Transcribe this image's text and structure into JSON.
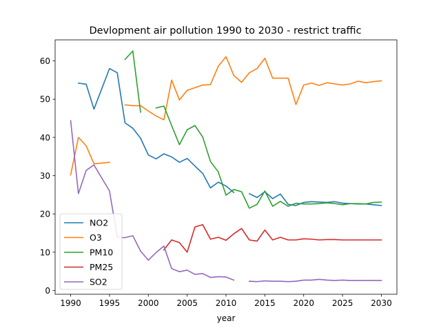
{
  "chart_data": {
    "type": "line",
    "title": "Devlopment air pollution 1990 to 2030 - restrict traffic",
    "xlabel": "year",
    "ylabel": "",
    "xlim": [
      1988.0,
      2032.0
    ],
    "ylim": [
      -1.0,
      65.5
    ],
    "xticks": [
      1990,
      1995,
      2000,
      2005,
      2010,
      2015,
      2020,
      2025,
      2030
    ],
    "yticks": [
      0,
      10,
      20,
      30,
      40,
      50,
      60
    ],
    "grid": false,
    "legend_position": "lower-left",
    "series": [
      {
        "name": "NO2",
        "color": "#1f77b4",
        "points": [
          [
            1991,
            54.2
          ],
          [
            1992,
            53.9
          ],
          [
            1993,
            47.4
          ],
          [
            1995,
            58.0
          ],
          [
            1996,
            56.9
          ],
          [
            1997,
            43.8
          ],
          [
            1998,
            42.4
          ],
          [
            1999,
            39.8
          ],
          [
            2000,
            35.4
          ],
          [
            2001,
            34.4
          ],
          [
            2002,
            35.7
          ],
          [
            2003,
            34.9
          ],
          [
            2004,
            33.5
          ],
          [
            2005,
            34.5
          ],
          [
            2006,
            32.5
          ],
          [
            2007,
            30.6
          ],
          [
            2008,
            26.8
          ],
          [
            2009,
            28.3
          ],
          [
            2010,
            27.3
          ],
          [
            2011,
            25.6
          ],
          null,
          [
            2013,
            25.3
          ],
          [
            2014,
            24.3
          ],
          [
            2015,
            25.8
          ],
          [
            2016,
            24.0
          ],
          [
            2017,
            25.2
          ],
          [
            2018,
            22.5
          ],
          [
            2019,
            22.2
          ],
          [
            2020,
            23.0
          ],
          [
            2021,
            23.2
          ],
          [
            2022,
            23.1
          ],
          [
            2023,
            23.0
          ],
          [
            2024,
            23.2
          ],
          [
            2025,
            22.8
          ],
          [
            2026,
            22.7
          ],
          [
            2027,
            22.6
          ],
          [
            2028,
            22.6
          ],
          [
            2029,
            22.4
          ],
          [
            2030,
            22.2
          ]
        ]
      },
      {
        "name": "O3",
        "color": "#ff7f0e",
        "points": [
          [
            1990,
            30.2
          ],
          [
            1991,
            40.0
          ],
          [
            1992,
            37.8
          ],
          [
            1993,
            33.1
          ],
          [
            1995,
            33.5
          ],
          null,
          [
            1997,
            48.5
          ],
          [
            1998,
            48.3
          ],
          [
            1999,
            48.3
          ],
          [
            2000,
            46.9
          ],
          [
            2001,
            45.6
          ],
          [
            2002,
            44.6
          ],
          [
            2003,
            55.0
          ],
          [
            2004,
            49.8
          ],
          [
            2005,
            52.3
          ],
          [
            2006,
            53.0
          ],
          [
            2007,
            53.7
          ],
          [
            2008,
            53.8
          ],
          [
            2009,
            58.6
          ],
          [
            2010,
            61.1
          ],
          [
            2011,
            56.2
          ],
          [
            2012,
            54.4
          ],
          [
            2013,
            56.9
          ],
          [
            2014,
            58.0
          ],
          [
            2015,
            60.7
          ],
          [
            2016,
            55.5
          ],
          [
            2017,
            55.5
          ],
          [
            2018,
            55.5
          ],
          [
            2019,
            48.6
          ],
          [
            2020,
            53.7
          ],
          [
            2021,
            54.2
          ],
          [
            2022,
            53.6
          ],
          [
            2023,
            54.3
          ],
          [
            2024,
            54.0
          ],
          [
            2025,
            53.7
          ],
          [
            2026,
            54.0
          ],
          [
            2027,
            54.7
          ],
          [
            2028,
            54.3
          ],
          [
            2029,
            54.6
          ],
          [
            2030,
            54.8
          ]
        ]
      },
      {
        "name": "PM10",
        "color": "#2ca02c",
        "points": [
          [
            1997,
            60.4
          ],
          [
            1998,
            62.6
          ],
          [
            1999,
            46.6
          ],
          null,
          [
            2001,
            47.7
          ],
          [
            2002,
            48.2
          ],
          [
            2003,
            43.1
          ],
          [
            2004,
            38.1
          ],
          [
            2005,
            42.0
          ],
          [
            2006,
            43.1
          ],
          [
            2007,
            40.1
          ],
          [
            2008,
            33.7
          ],
          [
            2009,
            31.0
          ],
          [
            2010,
            24.9
          ],
          [
            2011,
            26.4
          ],
          [
            2012,
            25.8
          ],
          [
            2013,
            21.5
          ],
          [
            2014,
            22.5
          ],
          [
            2015,
            26.0
          ],
          [
            2016,
            22.0
          ],
          [
            2017,
            23.3
          ],
          [
            2018,
            22.0
          ],
          [
            2019,
            22.8
          ],
          [
            2020,
            22.6
          ],
          [
            2021,
            22.6
          ],
          [
            2022,
            22.7
          ],
          [
            2023,
            22.9
          ],
          [
            2024,
            22.7
          ],
          [
            2025,
            22.4
          ],
          [
            2026,
            22.7
          ],
          [
            2027,
            22.7
          ],
          [
            2028,
            22.6
          ],
          [
            2029,
            23.0
          ],
          [
            2030,
            23.1
          ]
        ]
      },
      {
        "name": "PM25",
        "color": "#d62728",
        "points": [
          [
            2002,
            10.6
          ],
          [
            2003,
            13.2
          ],
          [
            2004,
            12.5
          ],
          [
            2005,
            10.0
          ],
          [
            2006,
            16.6
          ],
          [
            2007,
            17.2
          ],
          [
            2008,
            13.4
          ],
          [
            2009,
            13.9
          ],
          [
            2010,
            13.1
          ],
          [
            2011,
            14.8
          ],
          [
            2012,
            16.2
          ],
          [
            2013,
            13.2
          ],
          [
            2014,
            12.9
          ],
          [
            2015,
            15.8
          ],
          [
            2016,
            13.2
          ],
          [
            2017,
            13.9
          ],
          [
            2018,
            13.2
          ],
          [
            2019,
            13.2
          ],
          [
            2020,
            13.5
          ],
          [
            2021,
            13.4
          ],
          [
            2022,
            13.2
          ],
          [
            2023,
            13.3
          ],
          [
            2024,
            13.3
          ],
          [
            2025,
            13.2
          ],
          [
            2026,
            13.2
          ],
          [
            2027,
            13.2
          ],
          [
            2028,
            13.2
          ],
          [
            2029,
            13.2
          ],
          [
            2030,
            13.2
          ]
        ]
      },
      {
        "name": "SO2",
        "color": "#9467bd",
        "points": [
          [
            1990,
            44.4
          ],
          [
            1991,
            25.3
          ],
          [
            1992,
            31.4
          ],
          [
            1993,
            32.8
          ],
          [
            1995,
            26.0
          ],
          [
            1996,
            13.9
          ],
          [
            1997,
            13.8
          ],
          [
            1998,
            14.3
          ],
          [
            1999,
            10.3
          ],
          [
            2000,
            7.9
          ],
          [
            2001,
            9.9
          ],
          [
            2002,
            11.6
          ],
          [
            2003,
            5.7
          ],
          [
            2004,
            4.9
          ],
          [
            2005,
            5.3
          ],
          [
            2006,
            4.2
          ],
          [
            2007,
            4.4
          ],
          [
            2008,
            3.4
          ],
          [
            2009,
            3.6
          ],
          [
            2010,
            3.5
          ],
          [
            2011,
            2.7
          ],
          null,
          [
            2013,
            2.4
          ],
          [
            2014,
            2.3
          ],
          [
            2015,
            2.5
          ],
          [
            2016,
            2.4
          ],
          [
            2017,
            2.4
          ],
          [
            2018,
            2.3
          ],
          [
            2019,
            2.4
          ],
          [
            2020,
            2.7
          ],
          [
            2021,
            2.7
          ],
          [
            2022,
            2.9
          ],
          [
            2023,
            2.7
          ],
          [
            2024,
            2.6
          ],
          [
            2025,
            2.7
          ],
          [
            2026,
            2.6
          ],
          [
            2027,
            2.6
          ],
          [
            2028,
            2.6
          ],
          [
            2029,
            2.6
          ],
          [
            2030,
            2.6
          ]
        ]
      }
    ]
  }
}
